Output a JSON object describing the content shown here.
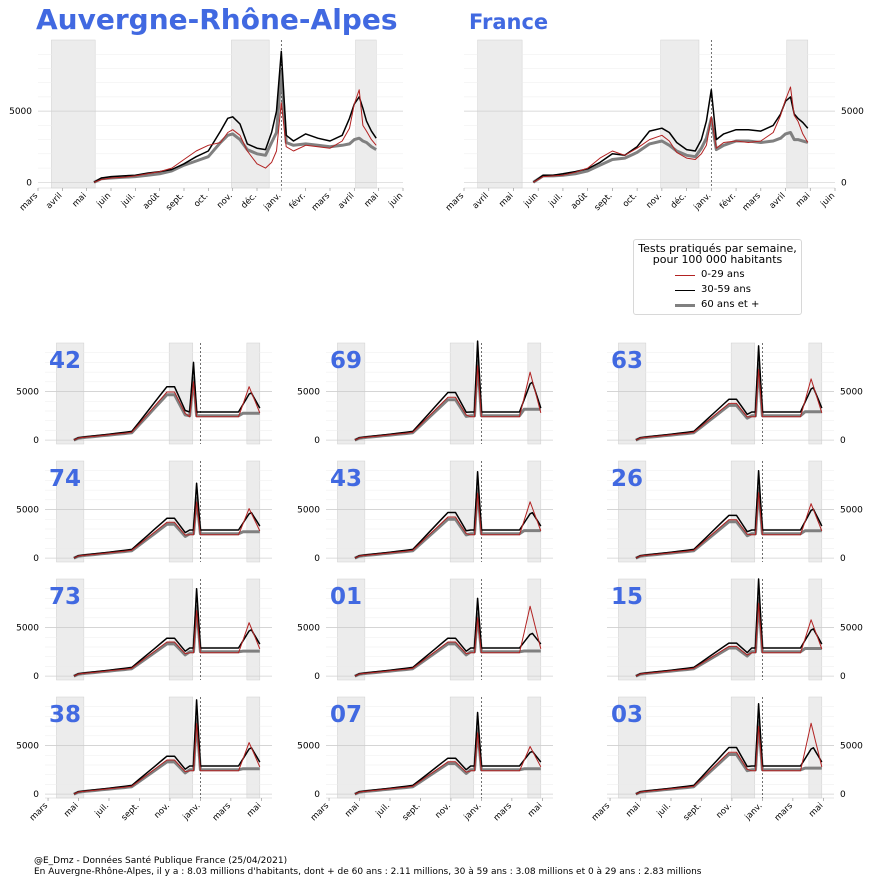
{
  "titles": {
    "region": "Auvergne-Rhône-Alpes",
    "france": "France"
  },
  "legend": {
    "title_line1": "Tests pratiqués par semaine,",
    "title_line2": "pour 100 000 habitants",
    "items": [
      {
        "label": "0-29 ans",
        "color": "#b22222",
        "width": 1
      },
      {
        "label": "30-59 ans",
        "color": "#000000",
        "width": 1.5
      },
      {
        "label": "60 ans et +",
        "color": "#808080",
        "width": 3
      }
    ]
  },
  "footer": {
    "line1": "@E_Dmz - Données Santé Publique France (25/04/2021)",
    "line2": "En Auvergne-Rhône-Alpes, il y a : 8.03 millions d'habitants, dont + de 60 ans : 2.11 millions, 30 à 59 ans : 3.08 millions et 0 à 29 ans : 2.83 millions"
  },
  "colors": {
    "young": "#b22222",
    "middle": "#000000",
    "old": "#808080",
    "title": "#4169e1",
    "lockdown": "#ececec"
  },
  "chart_data": {
    "type": "line",
    "x_unit": "months since 1 March 2020",
    "series_names": [
      "0-29 ans",
      "30-59 ans",
      "60 ans et +"
    ],
    "shaded_periods": [
      [
        0.55,
        2.35
      ],
      [
        7.95,
        9.5
      ],
      [
        13.05,
        13.9
      ]
    ],
    "vline_x": 10.0,
    "y_ticks": [
      0,
      5000
    ],
    "y_ticklabels": [
      "0",
      "5000"
    ],
    "ylim": [
      -400,
      10000
    ],
    "top_charts": [
      {
        "id": "region",
        "xlim": [
          0,
          15
        ],
        "tick_x": [
          0,
          1,
          2,
          3,
          4,
          5,
          6,
          7,
          8,
          9,
          10,
          11,
          12,
          13,
          14,
          15
        ],
        "tick_labels": [
          "mars",
          "avril",
          "mai",
          "juin",
          "juil.",
          "août",
          "sept.",
          "oct.",
          "nov.",
          "déc.",
          "janv.",
          "févr.",
          "mars",
          "avril",
          "mai",
          "juin"
        ],
        "ytick_side": "left",
        "x": [
          2.3,
          2.6,
          3,
          3.5,
          4,
          4.5,
          5,
          5.5,
          6,
          6.5,
          7,
          7.5,
          7.8,
          8,
          8.3,
          8.6,
          9,
          9.35,
          9.6,
          9.8,
          10,
          10.2,
          10.5,
          11,
          11.5,
          12,
          12.5,
          12.8,
          13,
          13.2,
          13.35,
          13.5,
          13.7,
          13.9
        ],
        "series": [
          {
            "values": [
              0,
              200,
              300,
              350,
              450,
              600,
              750,
              1000,
              1600,
              2200,
              2600,
              2800,
              3500,
              3700,
              3300,
              2200,
              1300,
              1000,
              1400,
              2200,
              5600,
              2500,
              2200,
              2600,
              2500,
              2400,
              2900,
              3800,
              5500,
              6500,
              4000,
              3600,
              3000,
              2600
            ]
          },
          {
            "values": [
              0,
              300,
              400,
              450,
              500,
              650,
              750,
              900,
              1300,
              1800,
              2200,
              3600,
              4500,
              4600,
              4100,
              2700,
              2400,
              2300,
              3500,
              5000,
              9200,
              3300,
              2900,
              3400,
              3100,
              2900,
              3300,
              4500,
              5500,
              6000,
              5200,
              4300,
              3600,
              3100
            ]
          },
          {
            "values": [
              0,
              250,
              300,
              350,
              400,
              500,
              600,
              800,
              1200,
              1500,
              1800,
              2800,
              3300,
              3400,
              3000,
              2300,
              2000,
              1900,
              2800,
              3500,
              7800,
              2800,
              2600,
              2700,
              2600,
              2500,
              2600,
              2700,
              3000,
              3100,
              2900,
              2800,
              2500,
              2300
            ]
          }
        ]
      },
      {
        "id": "france",
        "xlim": [
          0,
          15
        ],
        "tick_x": [
          0,
          1,
          2,
          3,
          4,
          5,
          6,
          7,
          8,
          9,
          10,
          11,
          12,
          13,
          14,
          15
        ],
        "tick_labels": [
          "mars",
          "avril",
          "mai",
          "juin",
          "juil.",
          "août",
          "sept.",
          "oct.",
          "nov.",
          "déc.",
          "janv.",
          "févr.",
          "mars",
          "avril",
          "mai",
          "juin"
        ],
        "ytick_side": "right",
        "x": [
          2.8,
          3.2,
          3.6,
          4,
          4.5,
          5,
          5.5,
          6,
          6.5,
          7,
          7.5,
          8,
          8.3,
          8.6,
          9,
          9.35,
          9.6,
          9.8,
          10,
          10.2,
          10.5,
          11,
          11.5,
          12,
          12.5,
          12.8,
          13,
          13.2,
          13.35,
          13.5,
          13.7,
          13.9
        ],
        "series": [
          {
            "values": [
              0,
              400,
              450,
              500,
              700,
              1000,
              1700,
              2200,
              1900,
              2400,
              3000,
              3300,
              2900,
              2100,
              1700,
              1600,
              2000,
              2600,
              4600,
              2400,
              2800,
              2900,
              2800,
              2900,
              3500,
              4700,
              5800,
              6700,
              4700,
              4300,
              3400,
              2800
            ]
          },
          {
            "values": [
              0,
              500,
              500,
              600,
              750,
              950,
              1400,
              2000,
              1900,
              2500,
              3600,
              3800,
              3500,
              2800,
              2300,
              2200,
              3000,
              4300,
              6500,
              3000,
              3400,
              3700,
              3700,
              3600,
              4000,
              4800,
              5700,
              6000,
              4800,
              4500,
              4200,
              3800
            ]
          },
          {
            "values": [
              0,
              450,
              450,
              500,
              600,
              800,
              1200,
              1600,
              1700,
              2100,
              2700,
              2900,
              2600,
              2200,
              1900,
              1800,
              2400,
              3100,
              4500,
              2300,
              2600,
              2900,
              2900,
              2800,
              2900,
              3100,
              3400,
              3500,
              3000,
              3000,
              2900,
              2800
            ]
          }
        ]
      }
    ],
    "small_xlim": [
      -0.2,
      14.7
    ],
    "small_tick_x": [
      0,
      2,
      4,
      6,
      8,
      10,
      12,
      14
    ],
    "small_tick_labels": [
      "mars",
      "mai",
      "juil.",
      "sept.",
      "nov.",
      "janv.",
      "mars",
      "mai"
    ],
    "small_x": [
      1.7,
      2,
      2.5,
      3,
      3.5,
      4,
      4.5,
      5,
      5.5,
      6,
      6.5,
      7,
      7.5,
      7.8,
      8,
      8.3,
      8.6,
      9,
      9.3,
      9.55,
      9.75,
      10,
      10.25,
      10.5,
      11,
      11.5,
      12,
      12.5,
      12.8,
      13,
      13.2,
      13.35,
      13.5,
      13.7,
      13.9
    ],
    "departments": [
      {
        "label": "42",
        "peaks": [
          5500,
          5800,
          8000,
          5000,
          5500,
          5800
        ],
        "spike": 9.55
      },
      {
        "label": "69",
        "peaks": [
          4900,
          5100,
          10200,
          6200,
          7000,
          8500
        ],
        "spike": 9.75
      },
      {
        "label": "63",
        "peaks": [
          4200,
          4600,
          9700,
          5600,
          6300,
          6800
        ],
        "spike": 9.75
      },
      {
        "label": "74",
        "peaks": [
          4100,
          4300,
          7700,
          4800,
          5100,
          5400
        ],
        "spike": 9.75
      },
      {
        "label": "43",
        "peaks": [
          4700,
          5000,
          8900,
          4800,
          5800,
          6200
        ],
        "spike": 9.75
      },
      {
        "label": "26",
        "peaks": [
          4400,
          4700,
          9000,
          5200,
          5600,
          6100
        ],
        "spike": 9.75
      },
      {
        "label": "73",
        "peaks": [
          3900,
          4300,
          9000,
          4900,
          5500,
          4500
        ],
        "spike": 9.75
      },
      {
        "label": "01",
        "peaks": [
          3900,
          4100,
          8000,
          4500,
          7200,
          4600
        ],
        "spike": 9.75
      },
      {
        "label": "15",
        "peaks": [
          3400,
          3500,
          10000,
          5000,
          5800,
          6300
        ],
        "spike": 9.75
      },
      {
        "label": "38",
        "peaks": [
          3900,
          4100,
          9700,
          4900,
          5300,
          4800
        ],
        "spike": 9.75
      },
      {
        "label": "07",
        "peaks": [
          3700,
          3900,
          8400,
          4500,
          4900,
          4700
        ],
        "spike": 9.75
      },
      {
        "label": "03",
        "peaks": [
          4800,
          5000,
          9300,
          4900,
          7300,
          5200
        ],
        "spike": 9.75
      }
    ]
  }
}
